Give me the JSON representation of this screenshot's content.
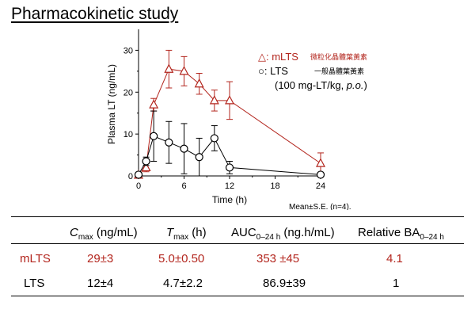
{
  "title": "Pharmacokinetic study",
  "chart_data": {
    "type": "line",
    "ylabel": "Plasma LT (ng/mL)",
    "xlabel": "Time (h)",
    "xlim": [
      0,
      24
    ],
    "ylim": [
      0,
      35
    ],
    "xticks": [
      "0",
      "6",
      "12",
      "18",
      "24"
    ],
    "yticks": [
      "0",
      "10",
      "20",
      "30"
    ],
    "series": [
      {
        "name": "mLTS",
        "legend_text": "△: mLTS",
        "legend_cjk": "微粒化晶體葉黃素",
        "marker": "triangle",
        "color": "#b3261e",
        "x": [
          0,
          1,
          2,
          4,
          6,
          8,
          10,
          12,
          24
        ],
        "y": [
          0.2,
          2.0,
          17.0,
          25.5,
          25.0,
          22.0,
          18.0,
          18.0,
          3.0
        ],
        "err": [
          0.3,
          1.0,
          1.5,
          4.5,
          3.5,
          2.5,
          2.5,
          4.5,
          2.5
        ]
      },
      {
        "name": "LTS",
        "legend_text": "○: LTS",
        "legend_cjk": "一般晶體葉黃素",
        "marker": "circle",
        "color": "#000000",
        "x": [
          0,
          1,
          2,
          4,
          6,
          8,
          10,
          12,
          24
        ],
        "y": [
          0.3,
          3.5,
          9.5,
          8.0,
          6.5,
          4.5,
          9.0,
          2.0,
          0.3
        ],
        "err": [
          0.3,
          1.0,
          6.0,
          5.0,
          6.0,
          4.5,
          3.0,
          1.5,
          0.3
        ]
      }
    ],
    "dose_note": "(100 mg-LT/kg, p.o.)",
    "dose_prefix": "(100 mg-LT/kg, ",
    "dose_italic": "p.o.",
    "dose_suffix": ")",
    "stats_note": "Mean±S.E. (n=4)."
  },
  "table": {
    "headers": {
      "cmax_main": "C",
      "cmax_sub": "max",
      "cmax_unit": " (ng/mL)",
      "tmax_main": "T",
      "tmax_sub": "max",
      "tmax_unit": " (h)",
      "auc_main": "AUC",
      "auc_sub": "0–24 h",
      "auc_unit": " (ng.h/mL)",
      "ba_main": "Relative BA",
      "ba_sub": "0–24 h"
    },
    "rows": [
      {
        "label": "mLTS",
        "cmax": "29±3",
        "tmax": "5.0±0.50",
        "auc": "353 ±45",
        "ba": "4.1"
      },
      {
        "label": "LTS",
        "cmax": "12±4",
        "tmax": "4.7±2.2",
        "auc": "86.9±39",
        "ba": "1"
      }
    ]
  }
}
